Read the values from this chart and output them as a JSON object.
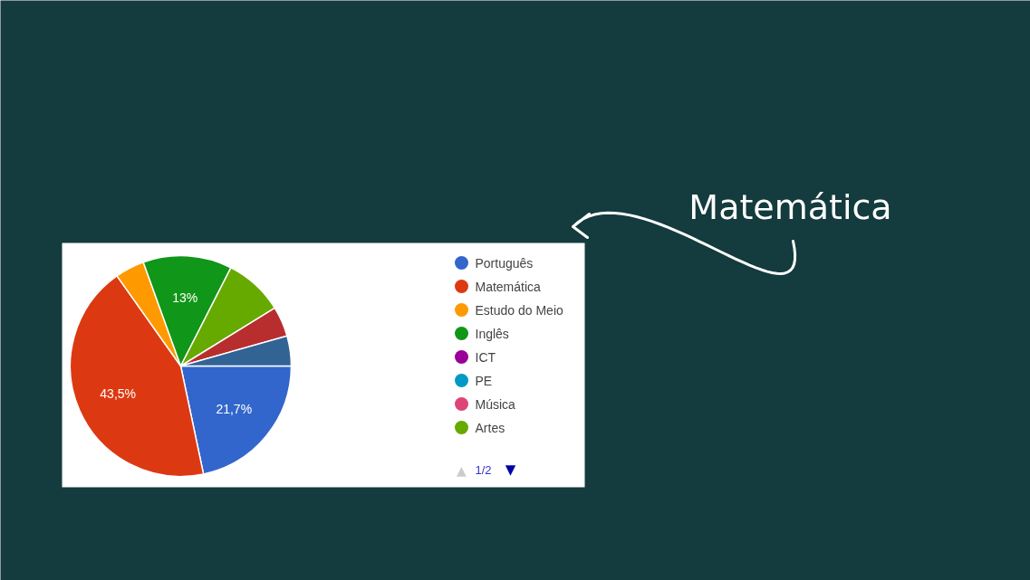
{
  "chart_data": {
    "type": "pie",
    "categories": [
      "Português",
      "Matemática",
      "Estudo do Meio",
      "Inglês",
      "ICT",
      "PE",
      "Música",
      "Artes",
      null,
      null
    ],
    "values": [
      21.7,
      43.5,
      4.3,
      13,
      0,
      0,
      0,
      8.7,
      4.4,
      4.4
    ],
    "colors": [
      "#3366cc",
      "#dc3912",
      "#ff9900",
      "#109618",
      "#990099",
      "#0099c6",
      "#dd4477",
      "#66aa00",
      "#b82e2e",
      "#316395"
    ],
    "value_labels": [
      "21,7%",
      "43,5%",
      null,
      "13%",
      null,
      null,
      null,
      null,
      null,
      null
    ],
    "legend": "right",
    "annotations": [
      "Matemática",
      "▲",
      "1/2",
      "▼"
    ]
  }
}
